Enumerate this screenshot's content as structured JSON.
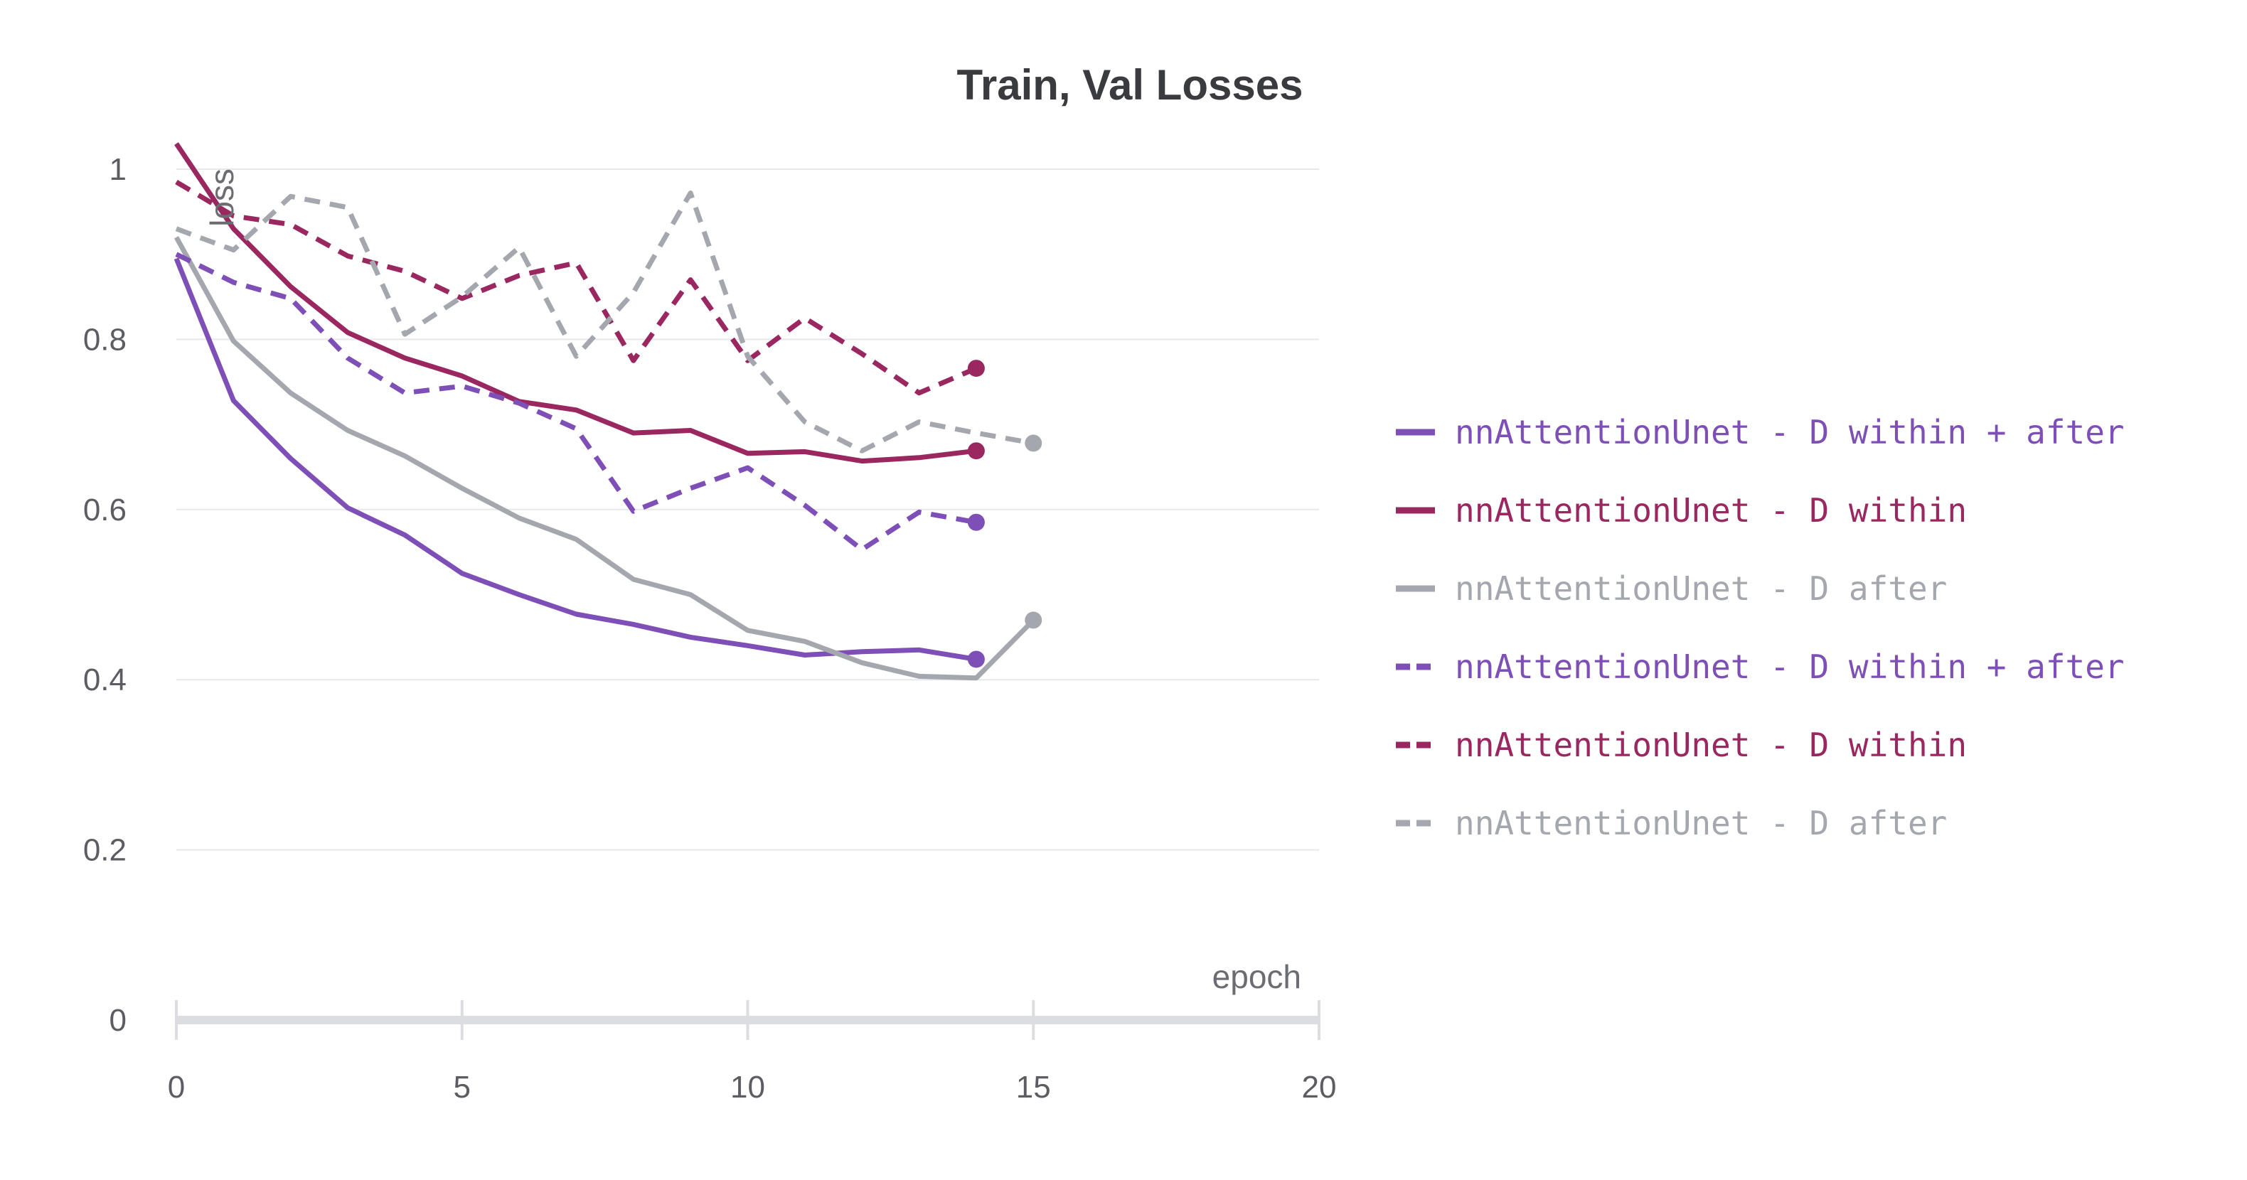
{
  "chart_data": {
    "type": "line",
    "title": "Train, Val Losses",
    "xlabel": "epoch",
    "ylabel": "loss",
    "xlim": [
      0,
      20
    ],
    "ylim": [
      0,
      1
    ],
    "x_ticks": [
      "0",
      "5",
      "10",
      "15",
      "20"
    ],
    "y_ticks": [
      "0",
      "0.2",
      "0.4",
      "0.6",
      "0.8",
      "1"
    ],
    "grid": true,
    "legend_position": "right",
    "series": [
      {
        "name": "nnAttentionUnet - D within + after",
        "style": "solid",
        "color": "#7e4fb6",
        "x": [
          0,
          1,
          2,
          3,
          4,
          5,
          6,
          7,
          8,
          9,
          10,
          11,
          12,
          13,
          14
        ],
        "y": [
          0.895,
          0.728,
          0.66,
          0.602,
          0.57,
          0.525,
          0.5,
          0.477,
          0.465,
          0.45,
          0.44,
          0.429,
          0.433,
          0.435,
          0.424
        ]
      },
      {
        "name": "nnAttentionUnet - D within",
        "style": "solid",
        "color": "#9a2760",
        "x": [
          0,
          1,
          2,
          3,
          4,
          5,
          6,
          7,
          8,
          9,
          10,
          11,
          12,
          13,
          14
        ],
        "y": [
          1.03,
          0.93,
          0.862,
          0.808,
          0.778,
          0.757,
          0.727,
          0.717,
          0.69,
          0.693,
          0.666,
          0.668,
          0.657,
          0.661,
          0.669
        ]
      },
      {
        "name": "nnAttentionUnet - D after",
        "style": "solid",
        "color": "#a4a8ae",
        "x": [
          0,
          1,
          2,
          3,
          4,
          5,
          6,
          7,
          8,
          9,
          10,
          11,
          12,
          13,
          14,
          15
        ],
        "y": [
          0.92,
          0.798,
          0.737,
          0.693,
          0.663,
          0.625,
          0.59,
          0.565,
          0.518,
          0.5,
          0.458,
          0.445,
          0.42,
          0.404,
          0.402,
          0.47
        ]
      },
      {
        "name": "nnAttentionUnet - D within + after",
        "style": "dashed",
        "color": "#7e4fb6",
        "x": [
          0,
          1,
          2,
          3,
          4,
          5,
          6,
          7,
          8,
          9,
          10,
          11,
          12,
          13,
          14
        ],
        "y": [
          0.9,
          0.867,
          0.848,
          0.778,
          0.737,
          0.745,
          0.725,
          0.695,
          0.598,
          0.625,
          0.649,
          0.605,
          0.553,
          0.597,
          0.585
        ]
      },
      {
        "name": "nnAttentionUnet - D within",
        "style": "dashed",
        "color": "#9a2760",
        "x": [
          0,
          1,
          2,
          3,
          4,
          5,
          6,
          7,
          8,
          9,
          10,
          11,
          12,
          13,
          14
        ],
        "y": [
          0.985,
          0.945,
          0.935,
          0.898,
          0.88,
          0.848,
          0.875,
          0.89,
          0.775,
          0.87,
          0.775,
          0.825,
          0.783,
          0.737,
          0.766
        ]
      },
      {
        "name": "nnAttentionUnet - D after",
        "style": "dashed",
        "color": "#a4a8ae",
        "x": [
          0,
          1,
          2,
          3,
          4,
          5,
          6,
          7,
          8,
          9,
          10,
          11,
          12,
          13,
          14,
          15
        ],
        "y": [
          0.93,
          0.905,
          0.968,
          0.955,
          0.806,
          0.85,
          0.908,
          0.78,
          0.855,
          0.972,
          0.78,
          0.703,
          0.669,
          0.703,
          0.69,
          0.678
        ]
      }
    ]
  }
}
